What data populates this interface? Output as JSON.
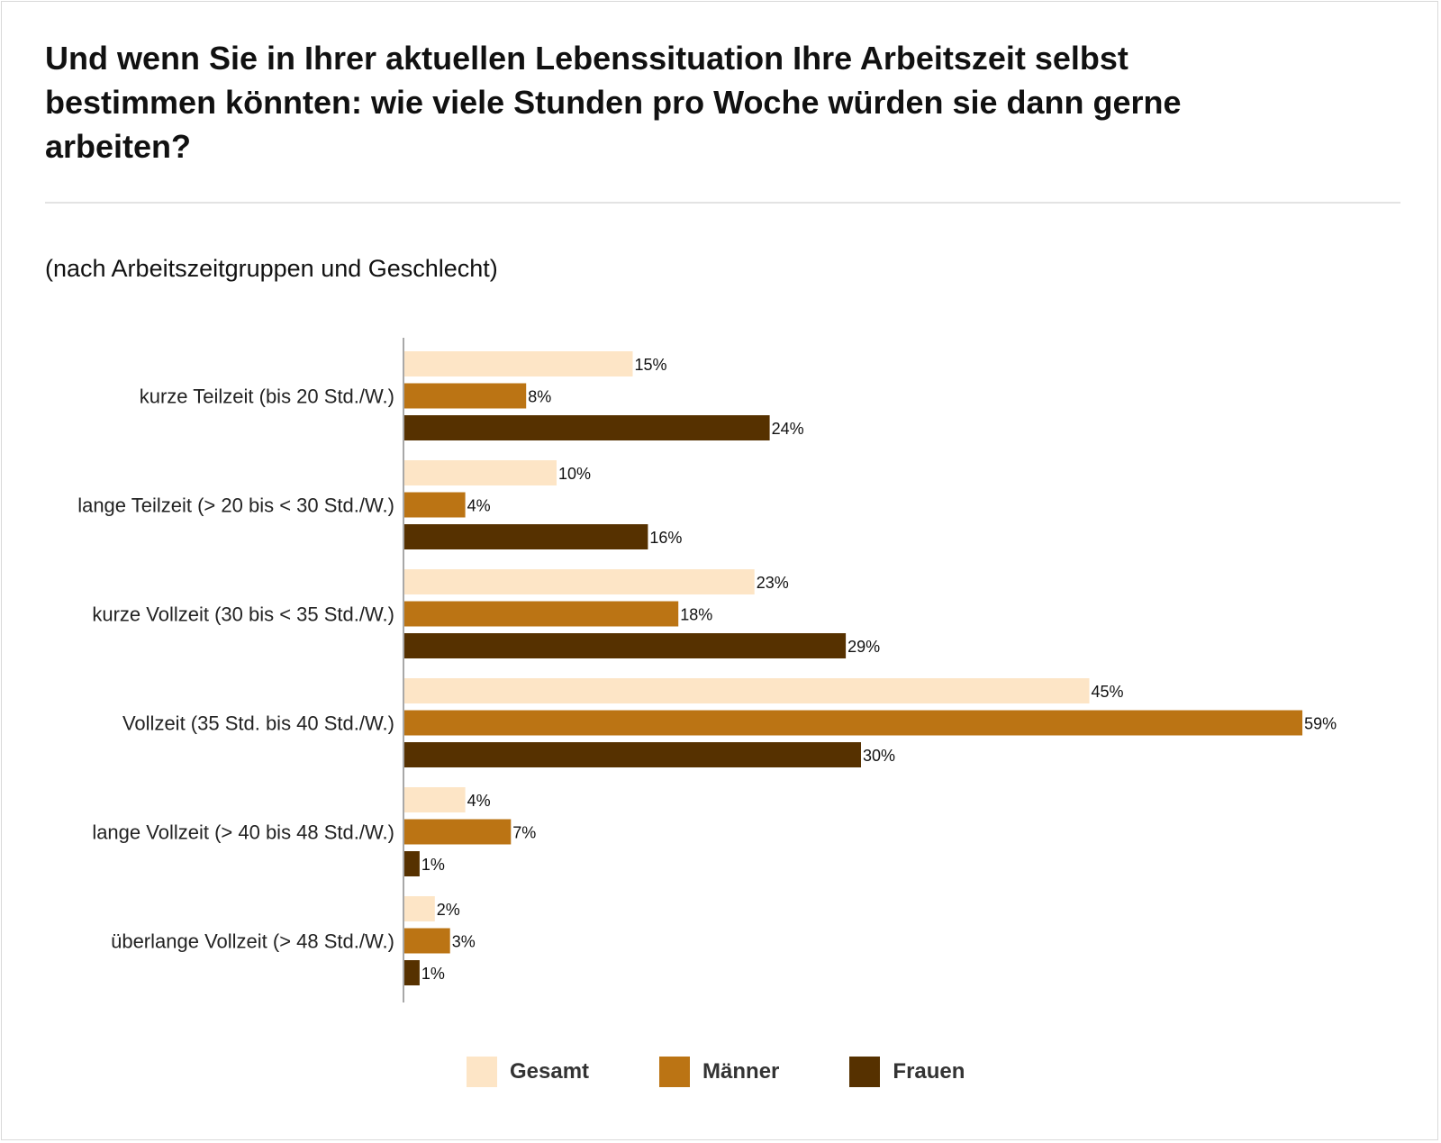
{
  "header": {
    "title": "Und wenn Sie in Ihrer aktuellen Lebenssituation Ihre Arbeitszeit selbst bestimmen könnten: wie viele Stunden pro Woche würden sie dann gerne arbeiten?",
    "subtitle": "(nach Arbeitszeitgruppen und Geschlecht)"
  },
  "colors": {
    "gesamt": "#fde5c6",
    "maenner": "#bb7414",
    "frauen": "#563100"
  },
  "chart_data": {
    "type": "bar",
    "orientation": "horizontal",
    "title": "Und wenn Sie in Ihrer aktuellen Lebenssituation Ihre Arbeitszeit selbst bestimmen könnten: wie viele Stunden pro Woche würden sie dann gerne arbeiten?",
    "subtitle": "(nach Arbeitszeitgruppen und Geschlecht)",
    "xlabel": "",
    "ylabel": "",
    "unit": "%",
    "xlim": [
      0,
      60
    ],
    "grid": false,
    "legend_position": "bottom",
    "categories": [
      "kurze Teilzeit (bis 20 Std./W.)",
      "lange Teilzeit (> 20 bis < 30 Std./W.)",
      "kurze Vollzeit (30 bis < 35 Std./W.)",
      "Vollzeit (35 Std. bis 40 Std./W.)",
      "lange Vollzeit (> 40 bis 48 Std./W.)",
      "überlange Vollzeit (> 48 Std./W.)"
    ],
    "series": [
      {
        "name": "Gesamt",
        "color": "#fde5c6",
        "values": [
          15,
          10,
          23,
          45,
          4,
          2
        ]
      },
      {
        "name": "Männer",
        "color": "#bb7414",
        "values": [
          8,
          4,
          18,
          59,
          7,
          3
        ]
      },
      {
        "name": "Frauen",
        "color": "#563100",
        "values": [
          24,
          16,
          29,
          30,
          1,
          1
        ]
      }
    ]
  }
}
